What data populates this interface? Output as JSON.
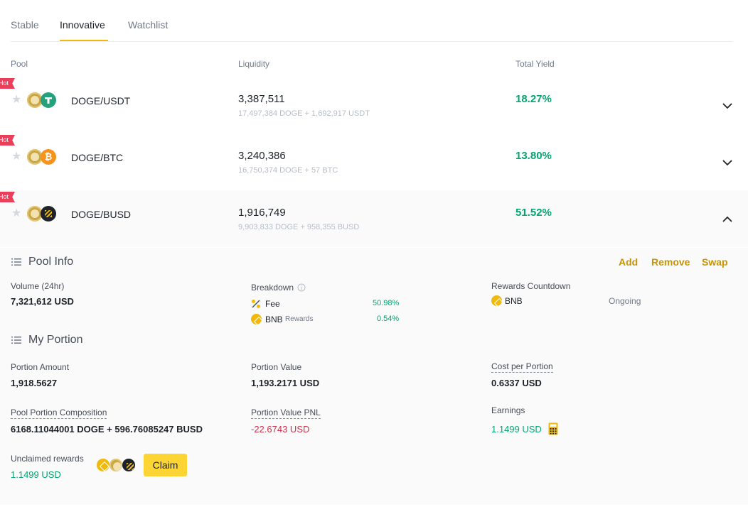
{
  "tabs": [
    {
      "label": "Stable"
    },
    {
      "label": "Innovative"
    },
    {
      "label": "Watchlist"
    }
  ],
  "columns": {
    "pool": "Pool",
    "liquidity": "Liquidity",
    "yield": "Total Yield"
  },
  "hot_badge": "Hot",
  "pools": [
    {
      "pair": "DOGE/USDT",
      "liquidity": "3,387,511",
      "composition": "17,497,384 DOGE + 1,692,917 USDT",
      "yield": "18.27%"
    },
    {
      "pair": "DOGE/BTC",
      "liquidity": "3,240,386",
      "composition": "16,750,374 DOGE + 57 BTC",
      "yield": "13.80%"
    },
    {
      "pair": "DOGE/BUSD",
      "liquidity": "1,916,749",
      "composition": "9,903,833 DOGE + 958,355 BUSD",
      "yield": "51.52%"
    }
  ],
  "pool_info": {
    "title": "Pool Info",
    "actions": {
      "add": "Add",
      "remove": "Remove",
      "swap": "Swap"
    },
    "volume_label": "Volume (24hr)",
    "volume_value": "7,321,612 USD",
    "breakdown_label": "Breakdown",
    "fee_label": "Fee",
    "fee_value": "50.98%",
    "bnb_label": "BNB",
    "bnb_sub": "Rewards",
    "bnb_value": "0.54%",
    "countdown_label": "Rewards Countdown",
    "countdown_coin": "BNB",
    "countdown_status": "Ongoing"
  },
  "my_portion": {
    "title": "My Portion",
    "amount_label": "Portion Amount",
    "amount_value": "1,918.5627",
    "value_label": "Portion Value",
    "value_value": "1,193.2171 USD",
    "cost_label": "Cost per Portion",
    "cost_value": "0.6337 USD",
    "composition_label": "Pool Portion Composition",
    "composition_value": "6168.11044001 DOGE + 596.76085247 BUSD",
    "pnl_label": "Portion Value PNL",
    "pnl_value": "-22.6743 USD",
    "earnings_label": "Earnings",
    "earnings_value": "1.1499 USD",
    "unclaimed_label": "Unclaimed rewards",
    "unclaimed_value": "1.1499 USD",
    "claim_label": "Claim"
  },
  "colors": {
    "accent": "#f0b90b",
    "green": "#03a66d",
    "red": "#cf304a",
    "hot": "#e8405a"
  },
  "icons": [
    "star-icon",
    "doge-coin-icon",
    "usdt-coin-icon",
    "btc-coin-icon",
    "busd-coin-icon",
    "bnb-coin-icon",
    "chevron-down-icon",
    "chevron-up-icon",
    "list-icon",
    "info-icon",
    "percent-icon",
    "calculator-icon"
  ]
}
